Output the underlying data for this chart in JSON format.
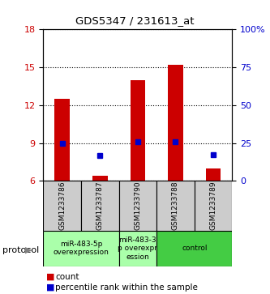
{
  "title": "GDS5347 / 231613_at",
  "samples": [
    "GSM1233786",
    "GSM1233787",
    "GSM1233790",
    "GSM1233788",
    "GSM1233789"
  ],
  "bar_bottoms": [
    6,
    6,
    6,
    6,
    6
  ],
  "bar_tops": [
    12.5,
    6.4,
    14.0,
    15.2,
    7.0
  ],
  "percentile_values": [
    9.0,
    8.0,
    9.1,
    9.1,
    8.1
  ],
  "ylim_left": [
    6,
    18
  ],
  "ylim_right": [
    0,
    100
  ],
  "yticks_left": [
    6,
    9,
    12,
    15,
    18
  ],
  "yticks_right": [
    0,
    25,
    50,
    75,
    100
  ],
  "ytick_labels_left": [
    "6",
    "9",
    "12",
    "15",
    "18"
  ],
  "ytick_labels_right": [
    "0",
    "25",
    "50",
    "75",
    "100%"
  ],
  "bar_color": "#cc0000",
  "dot_color": "#0000cc",
  "sample_box_color": "#cccccc",
  "groups": [
    {
      "sample_indices": [
        0,
        1
      ],
      "label": "miR-483-5p\noverexpression",
      "color": "#aaffaa"
    },
    {
      "sample_indices": [
        2
      ],
      "label": "miR-483-3\np overexpr\nession",
      "color": "#aaffaa"
    },
    {
      "sample_indices": [
        3,
        4
      ],
      "label": "control",
      "color": "#44cc44"
    }
  ],
  "protocol_label": "protocol",
  "bar_width": 0.4
}
